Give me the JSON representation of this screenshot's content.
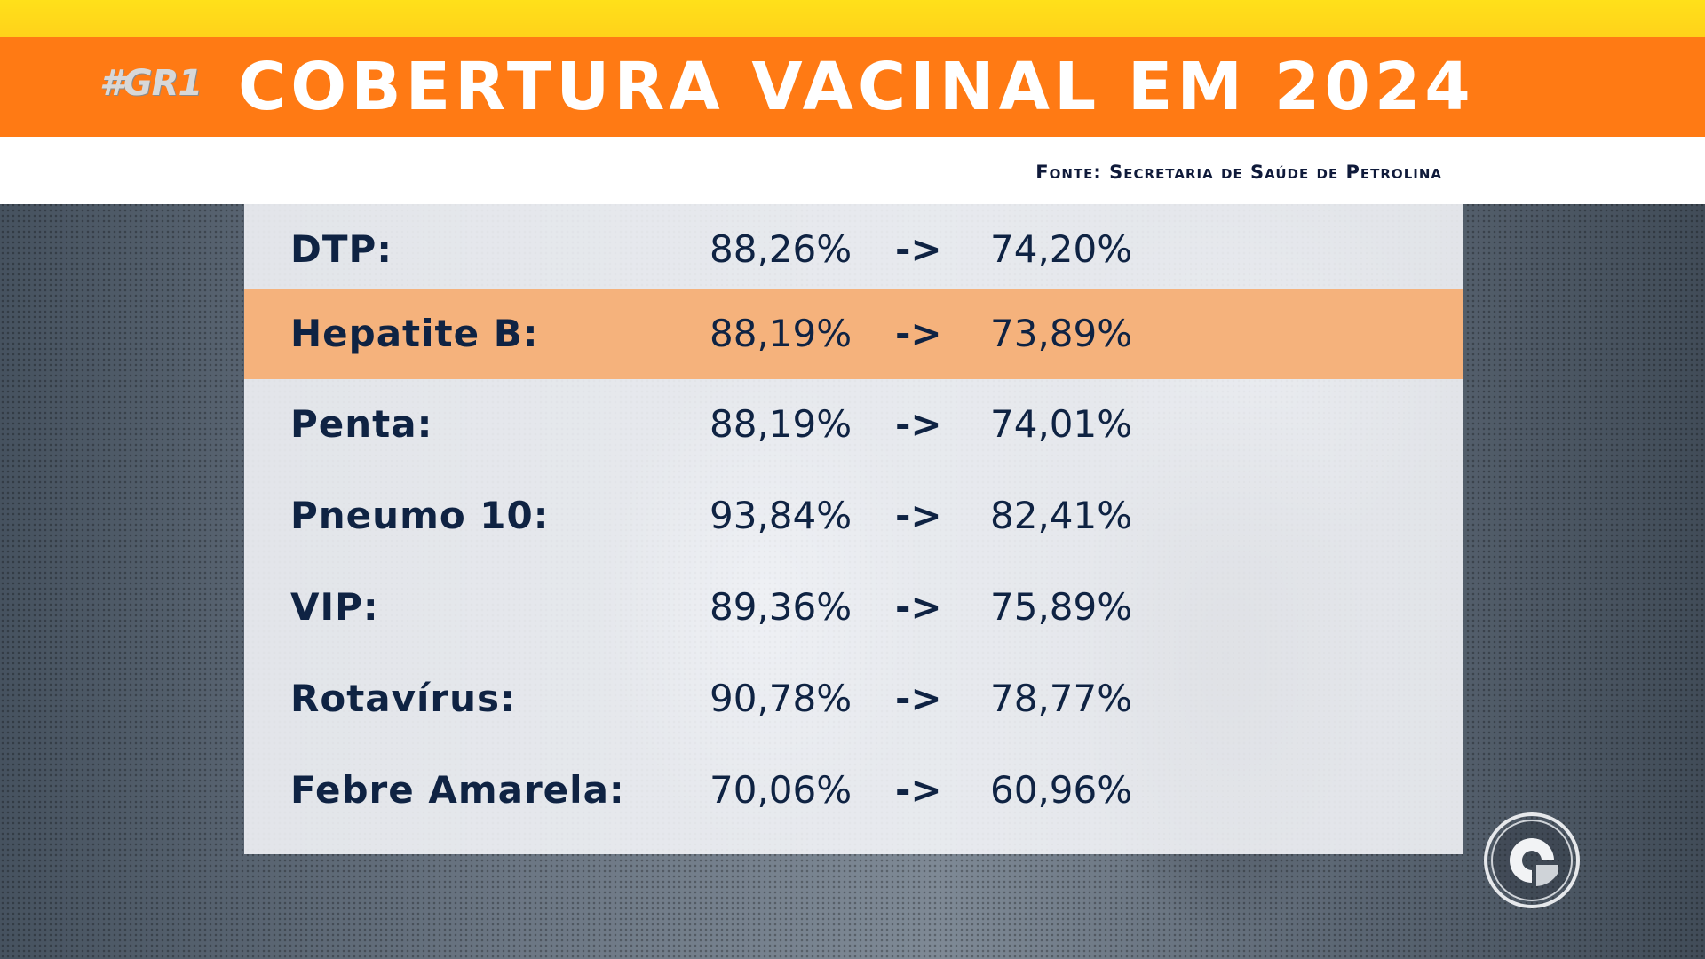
{
  "header": {
    "hashtag": "#GR1",
    "title": "COBERTURA VACINAL EM 2024",
    "source": "Fonte: Secretaria de Saúde de Petrolina"
  },
  "table": {
    "rows": [
      {
        "vaccine": "DTP:",
        "before": "88,26%",
        "arrow": "->",
        "after": "74,20%",
        "highlighted": false
      },
      {
        "vaccine": "Hepatite B:",
        "before": "88,19%",
        "arrow": "->",
        "after": "73,89%",
        "highlighted": true
      },
      {
        "vaccine": "Penta:",
        "before": "88,19%",
        "arrow": "->",
        "after": "74,01%",
        "highlighted": false
      },
      {
        "vaccine": "Pneumo 10:",
        "before": "93,84%",
        "arrow": "->",
        "after": "82,41%",
        "highlighted": false
      },
      {
        "vaccine": "VIP:",
        "before": "89,36%",
        "arrow": "->",
        "after": "75,89%",
        "highlighted": false
      },
      {
        "vaccine": "Rotavírus:",
        "before": "90,78%",
        "arrow": "->",
        "after": "78,77%",
        "highlighted": false
      },
      {
        "vaccine": "Febre Amarela:",
        "before": "70,06%",
        "arrow": "->",
        "after": "60,96%",
        "highlighted": false
      }
    ]
  },
  "colors": {
    "top_stripe": "#ffd21a",
    "title_bar": "#ff7a14",
    "highlight_row": "#f5b27c",
    "text_dark": "#0f2343"
  },
  "icons": {
    "network_logo": "globo-logo-icon"
  }
}
